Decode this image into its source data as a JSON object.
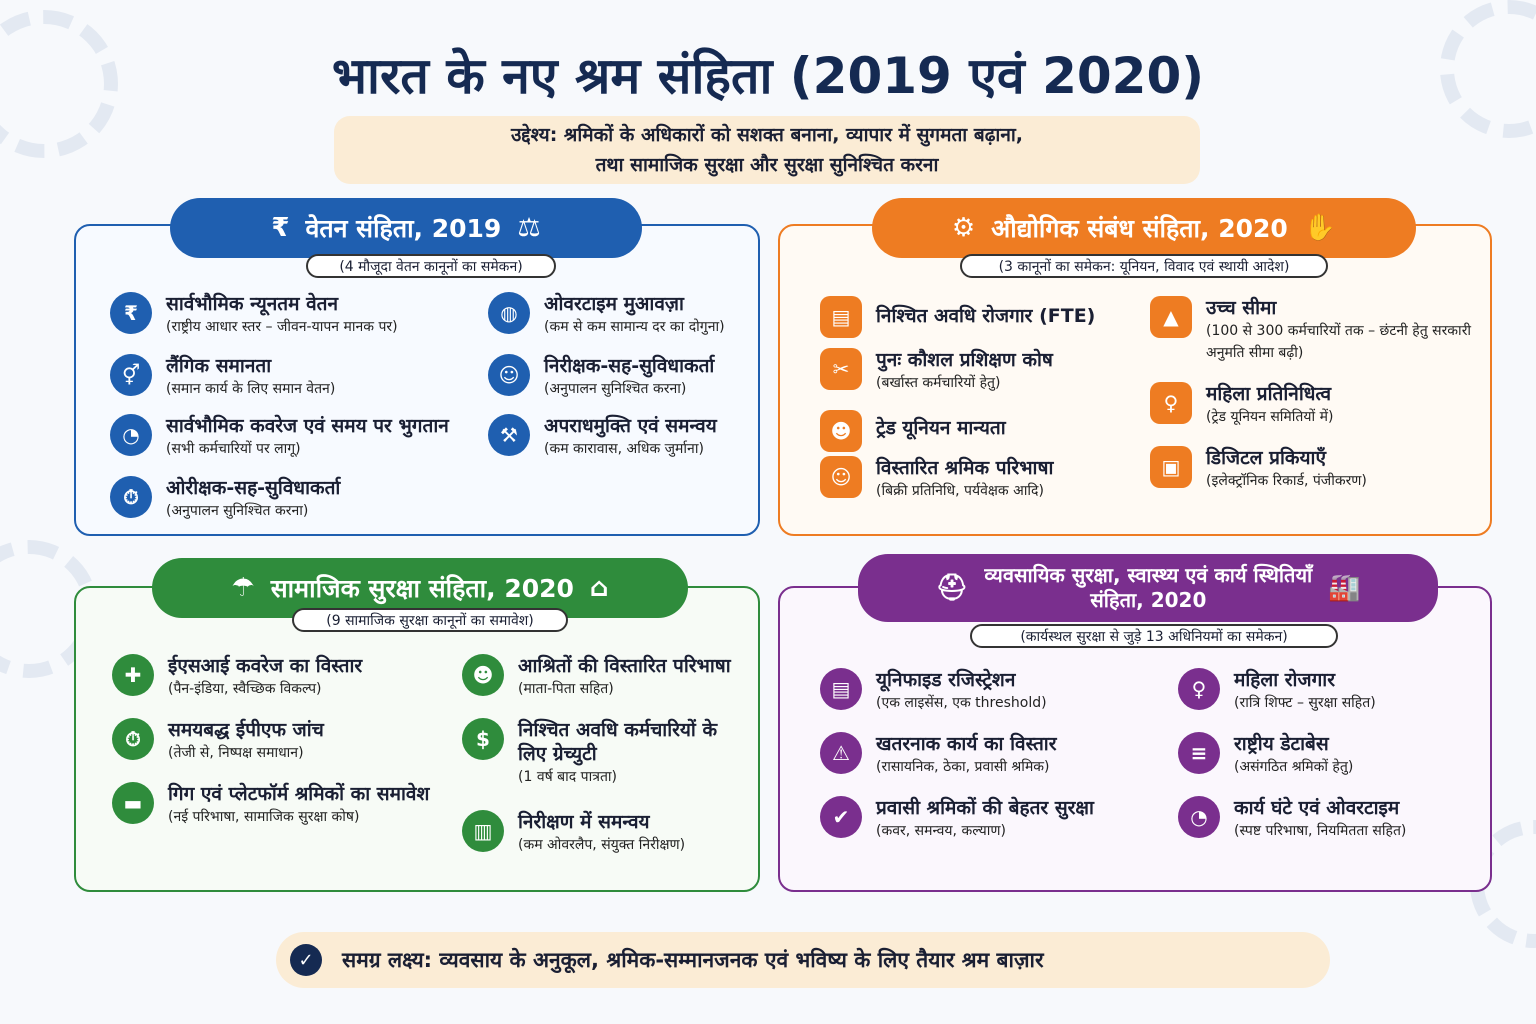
{
  "title": "भारत के नए श्रम संहिता (2019 एवं 2020)",
  "objective": {
    "line1": "उद्देश्य: श्रमिकों के अधिकारों को सशक्त बनाना, व्यापार में सुगमता बढ़ाना,",
    "line2": "तथा सामाजिक सुरक्षा और सुरक्षा सुनिश्चित करना"
  },
  "wage": {
    "title": "वेतन संहिता, 2019",
    "subtitle": "(4 मौजूदा वेतन कानूनों का समेकन)",
    "items": [
      {
        "title": "सार्वभौमिक न्यूनतम वेतन",
        "desc": "(राष्ट्रीय आधार स्तर – जीवन-यापन मानक पर)",
        "icon": "rupee-icon"
      },
      {
        "title": "लैंगिक समानता",
        "desc": "(समान कार्य के लिए समान वेतन)",
        "icon": "gender-icon"
      },
      {
        "title": "सार्वभौमिक कवरेज एवं समय पर भुगतान",
        "desc": "(सभी कर्मचारियों पर लागू)",
        "icon": "clock-icon"
      },
      {
        "title": "ओरीक्षक-सह-सुविधाकर्ता",
        "desc": "(अनुपालन सुनिश्चित करना)",
        "icon": "stopwatch-icon"
      },
      {
        "title": "ओवरटाइम मुआवज़ा",
        "desc": "(कम से कम सामान्य दर का दोगुना)",
        "icon": "globe-icon"
      },
      {
        "title": "निरीक्षक-सह-सुविधाकर्ता",
        "desc": "(अनुपालन सुनिश्चित करना)",
        "icon": "inspector-icon"
      },
      {
        "title": "अपराधमुक्ति एवं समन्वय",
        "desc": "(कम कारावास, अधिक जुर्माना)",
        "icon": "gavel-icon"
      }
    ]
  },
  "industrial": {
    "title": "औद्योगिक संबंध संहिता, 2020",
    "subtitle": "(3 कानूनों का समेकन: यूनियन, विवाद एवं स्थायी आदेश)",
    "items": [
      {
        "title": "निश्चित अवधि रोजगार (FTE)",
        "desc": "",
        "icon": "document-icon"
      },
      {
        "title": "पुनः कौशल प्रशिक्षण कोष",
        "desc": "(बर्खास्त कर्मचारियों हेतु)",
        "icon": "tools-icon"
      },
      {
        "title": "ट्रेड यूनियन मान्यता",
        "desc": "",
        "icon": "group-icon"
      },
      {
        "title": "विस्तारित श्रमिक परिभाषा",
        "desc": "(बिक्री प्रतिनिधि, पर्यवेक्षक आदि)",
        "icon": "worker-icon"
      },
      {
        "title": "उच्च सीमा",
        "desc": "(100 से 300 कर्मचारियों तक – छंटनी हेतु सरकारी अनुमति सीमा बढ़ी)",
        "icon": "chart-icon"
      },
      {
        "title": "महिला प्रतिनिधित्व",
        "desc": "(ट्रेड यूनियन समितियों में)",
        "icon": "woman-icon"
      },
      {
        "title": "डिजिटल प्रकियाएँ",
        "desc": "(इलेक्ट्रॉनिक रिकार्ड, पंजीकरण)",
        "icon": "computer-icon"
      }
    ]
  },
  "social": {
    "title": "सामाजिक सुरक्षा संहिता, 2020",
    "subtitle": "(9 सामाजिक सुरक्षा कानूनों का समावेश)",
    "items": [
      {
        "title": "ईएसआई कवरेज का विस्तार",
        "desc": "(पैन-इंडिया, स्वैच्छिक विकल्प)",
        "icon": "medical-cross-icon"
      },
      {
        "title": "समयबद्ध ईपीएफ जांच",
        "desc": "(तेजी से, निष्पक्ष समाधान)",
        "icon": "timer-icon"
      },
      {
        "title": "गिग एवं प्लेटफॉर्म श्रमिकों का समावेश",
        "desc": "(नई परिभाषा, सामाजिक सुरक्षा कोष)",
        "icon": "laptop-user-icon"
      },
      {
        "title": "आश्रितों की विस्तारित परिभाषा",
        "desc": "(माता-पिता सहित)",
        "icon": "family-icon"
      },
      {
        "title": "निश्चित अवधि कर्मचारियों के लिए ग्रेच्युटी",
        "desc": "(1 वर्ष बाद पात्रता)",
        "icon": "money-hand-icon"
      },
      {
        "title": "निरीक्षण में समन्वय",
        "desc": "(कम ओवरलैप, संयुक्त निरीक्षण)",
        "icon": "building-icon"
      }
    ]
  },
  "safety": {
    "title1": "व्यवसायिक सुरक्षा, स्वास्थ्य एवं कार्य स्थितियाँ",
    "title2": "संहिता, 2020",
    "subtitle": "(कार्यस्थल सुरक्षा से जुड़े 13 अधिनियमों का समेकन)",
    "items": [
      {
        "title": "यूनिफाइड रजिस्ट्रेशन",
        "desc": "(एक लाइसेंस, एक threshold)",
        "icon": "document-icon"
      },
      {
        "title": "खतरनाक कार्य का विस्तार",
        "desc": "(रासायनिक, ठेका, प्रवासी श्रमिक)",
        "icon": "warning-icon"
      },
      {
        "title": "प्रवासी श्रमिकों की बेहतर सुरक्षा",
        "desc": "(कवर, समन्वय, कल्याण)",
        "icon": "shield-check-icon"
      },
      {
        "title": "महिला रोजगार",
        "desc": "(रात्रि शिफ्ट – सुरक्षा सहित)",
        "icon": "woman-icon"
      },
      {
        "title": "राष्ट्रीय डेटाबेस",
        "desc": "(असंगठित श्रमिकों हेतु)",
        "icon": "database-icon"
      },
      {
        "title": "कार्य घंटे एवं ओवरटाइम",
        "desc": "(स्पष्ट परिभाषा, नियमितता सहित)",
        "icon": "clock-icon"
      }
    ]
  },
  "goal": "समग्र लक्ष्य:  व्यवसाय के अनुकूल, श्रमिक-सम्मानजनक एवं भविष्य के लिए तैयार श्रम बाज़ार",
  "colors": {
    "blue": "#1f5fb0",
    "orange": "#ee7c22",
    "green": "#2f8c3c",
    "purple": "#7a2f8e",
    "navy": "#152a52"
  }
}
